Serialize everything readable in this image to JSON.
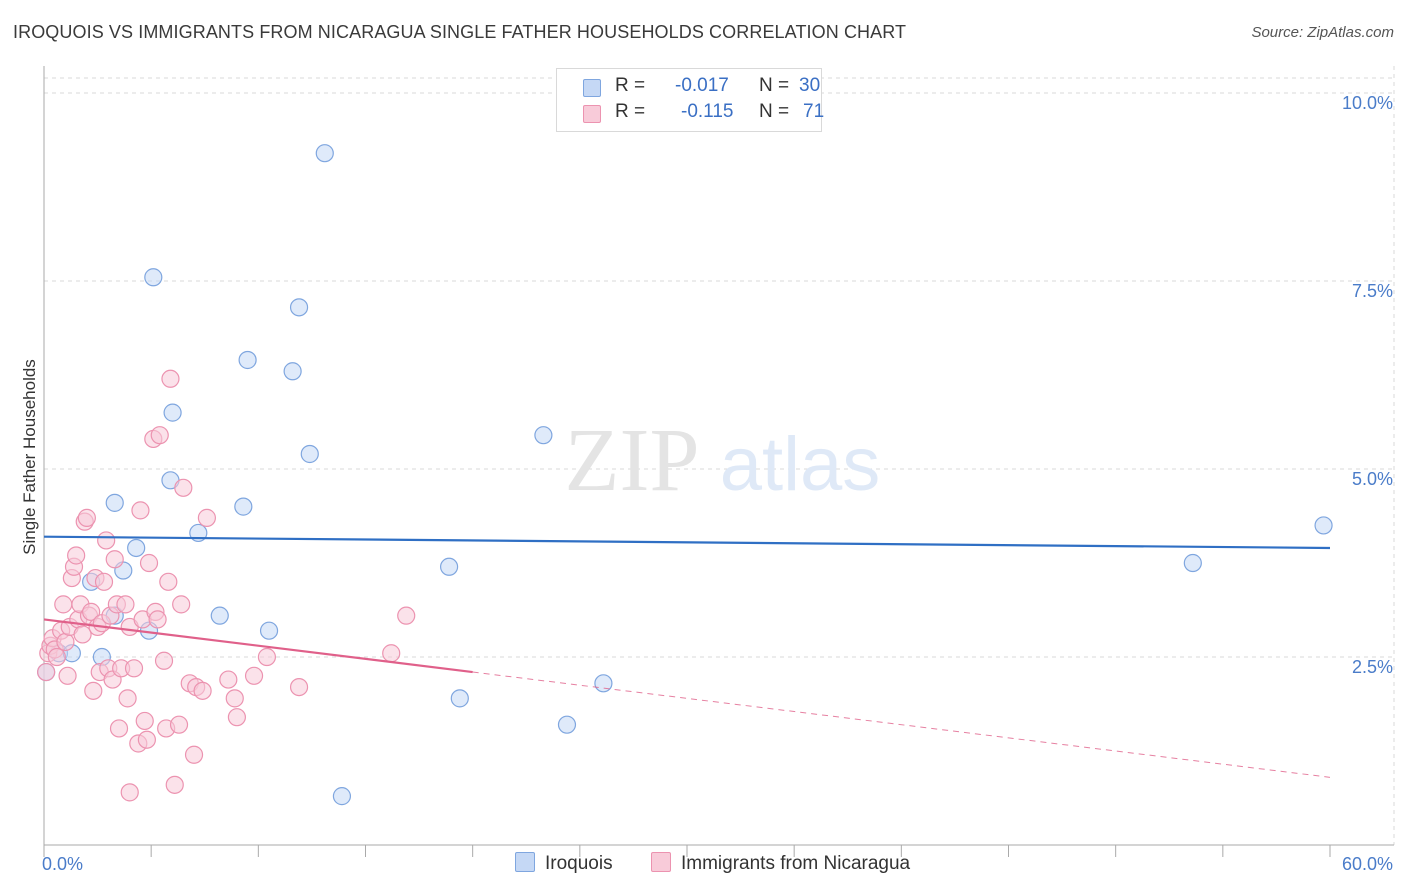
{
  "title": "IROQUOIS VS IMMIGRANTS FROM NICARAGUA SINGLE FATHER HOUSEHOLDS CORRELATION CHART",
  "source": "Source: ZipAtlas.com",
  "watermark": {
    "zip": "ZIP",
    "atlas": "atlas"
  },
  "legend": {
    "r_label": "R =",
    "n_label": "N =",
    "rows": [
      {
        "name": "Iroquois",
        "r": "-0.017",
        "n": "30"
      },
      {
        "name": "Immigrants from Nicaragua",
        "r": "-0.115",
        "n": "71"
      }
    ]
  },
  "colors": {
    "series1_fill": "#c5d8f5",
    "series1_stroke": "#7fa6df",
    "series1_line": "#2f6fc4",
    "series2_fill": "#f8cbd9",
    "series2_stroke": "#ec93b0",
    "series2_line": "#e0608a",
    "grid": "#d8d8d8",
    "tick_text": "#4a7cc9"
  },
  "chart_data": {
    "type": "scatter",
    "title": "IROQUOIS VS IMMIGRANTS FROM NICARAGUA SINGLE FATHER HOUSEHOLDS CORRELATION CHART",
    "xlabel": "",
    "ylabel": "Single Father Households",
    "xlim": [
      0,
      60
    ],
    "ylim": [
      0,
      10.2
    ],
    "x_tick_labels": [
      "0.0%",
      "60.0%"
    ],
    "y_ticks": [
      2.5,
      5.0,
      7.5,
      10.0
    ],
    "y_tick_labels": [
      "2.5%",
      "5.0%",
      "7.5%",
      "10.0%"
    ],
    "grid": true,
    "series": [
      {
        "name": "Iroquois",
        "r": -0.017,
        "n": 30,
        "trend": {
          "x": [
            0,
            60
          ],
          "y": [
            4.1,
            3.95
          ],
          "dashed_after": null
        },
        "points": [
          {
            "x": 0.1,
            "y": 2.3
          },
          {
            "x": 0.7,
            "y": 2.55
          },
          {
            "x": 1.3,
            "y": 2.55
          },
          {
            "x": 3.3,
            "y": 3.05
          },
          {
            "x": 2.2,
            "y": 3.5
          },
          {
            "x": 2.7,
            "y": 2.5
          },
          {
            "x": 3.7,
            "y": 3.65
          },
          {
            "x": 3.3,
            "y": 4.55
          },
          {
            "x": 4.3,
            "y": 3.95
          },
          {
            "x": 4.9,
            "y": 2.85
          },
          {
            "x": 5.1,
            "y": 7.55
          },
          {
            "x": 5.9,
            "y": 4.85
          },
          {
            "x": 6.0,
            "y": 5.75
          },
          {
            "x": 7.2,
            "y": 4.15
          },
          {
            "x": 8.2,
            "y": 3.05
          },
          {
            "x": 9.5,
            "y": 6.45
          },
          {
            "x": 9.3,
            "y": 4.5
          },
          {
            "x": 10.5,
            "y": 2.85
          },
          {
            "x": 11.6,
            "y": 6.3
          },
          {
            "x": 11.9,
            "y": 7.15
          },
          {
            "x": 12.4,
            "y": 5.2
          },
          {
            "x": 13.1,
            "y": 9.2
          },
          {
            "x": 13.9,
            "y": 0.65
          },
          {
            "x": 18.9,
            "y": 3.7
          },
          {
            "x": 19.4,
            "y": 1.95
          },
          {
            "x": 23.3,
            "y": 5.45
          },
          {
            "x": 24.4,
            "y": 1.6
          },
          {
            "x": 26.1,
            "y": 2.15
          },
          {
            "x": 53.6,
            "y": 3.75
          },
          {
            "x": 59.7,
            "y": 4.25
          }
        ]
      },
      {
        "name": "Immigrants from Nicaragua",
        "r": -0.115,
        "n": 71,
        "trend": {
          "x": [
            0,
            60
          ],
          "y": [
            3.0,
            0.9
          ],
          "dashed_after": 20
        },
        "points": [
          {
            "x": 0.1,
            "y": 2.3
          },
          {
            "x": 0.2,
            "y": 2.55
          },
          {
            "x": 0.3,
            "y": 2.65
          },
          {
            "x": 0.4,
            "y": 2.75
          },
          {
            "x": 0.5,
            "y": 2.6
          },
          {
            "x": 0.6,
            "y": 2.5
          },
          {
            "x": 0.8,
            "y": 2.85
          },
          {
            "x": 0.9,
            "y": 3.2
          },
          {
            "x": 1.0,
            "y": 2.7
          },
          {
            "x": 1.1,
            "y": 2.25
          },
          {
            "x": 1.2,
            "y": 2.9
          },
          {
            "x": 1.3,
            "y": 3.55
          },
          {
            "x": 1.4,
            "y": 3.7
          },
          {
            "x": 1.5,
            "y": 3.85
          },
          {
            "x": 1.6,
            "y": 3.0
          },
          {
            "x": 1.7,
            "y": 3.2
          },
          {
            "x": 1.8,
            "y": 2.8
          },
          {
            "x": 1.9,
            "y": 4.3
          },
          {
            "x": 2.0,
            "y": 4.35
          },
          {
            "x": 2.1,
            "y": 3.05
          },
          {
            "x": 2.2,
            "y": 3.1
          },
          {
            "x": 2.3,
            "y": 2.05
          },
          {
            "x": 2.4,
            "y": 3.55
          },
          {
            "x": 2.5,
            "y": 2.9
          },
          {
            "x": 2.6,
            "y": 2.3
          },
          {
            "x": 2.7,
            "y": 2.95
          },
          {
            "x": 2.8,
            "y": 3.5
          },
          {
            "x": 2.9,
            "y": 4.05
          },
          {
            "x": 3.0,
            "y": 2.35
          },
          {
            "x": 3.1,
            "y": 3.05
          },
          {
            "x": 3.2,
            "y": 2.2
          },
          {
            "x": 3.3,
            "y": 3.8
          },
          {
            "x": 3.4,
            "y": 3.2
          },
          {
            "x": 3.5,
            "y": 1.55
          },
          {
            "x": 3.6,
            "y": 2.35
          },
          {
            "x": 3.8,
            "y": 3.2
          },
          {
            "x": 3.9,
            "y": 1.95
          },
          {
            "x": 4.0,
            "y": 2.9
          },
          {
            "x": 4.0,
            "y": 0.7
          },
          {
            "x": 4.2,
            "y": 2.35
          },
          {
            "x": 4.4,
            "y": 1.35
          },
          {
            "x": 4.5,
            "y": 4.45
          },
          {
            "x": 4.6,
            "y": 3.0
          },
          {
            "x": 4.7,
            "y": 1.65
          },
          {
            "x": 4.8,
            "y": 1.4
          },
          {
            "x": 4.9,
            "y": 3.75
          },
          {
            "x": 5.1,
            "y": 5.4
          },
          {
            "x": 5.2,
            "y": 3.1
          },
          {
            "x": 5.3,
            "y": 3.0
          },
          {
            "x": 5.4,
            "y": 5.45
          },
          {
            "x": 5.6,
            "y": 2.45
          },
          {
            "x": 5.7,
            "y": 1.55
          },
          {
            "x": 5.8,
            "y": 3.5
          },
          {
            "x": 5.9,
            "y": 6.2
          },
          {
            "x": 6.1,
            "y": 0.8
          },
          {
            "x": 6.3,
            "y": 1.6
          },
          {
            "x": 6.4,
            "y": 3.2
          },
          {
            "x": 6.5,
            "y": 4.75
          },
          {
            "x": 6.8,
            "y": 2.15
          },
          {
            "x": 7.0,
            "y": 1.2
          },
          {
            "x": 7.1,
            "y": 2.1
          },
          {
            "x": 7.4,
            "y": 2.05
          },
          {
            "x": 7.6,
            "y": 4.35
          },
          {
            "x": 8.6,
            "y": 2.2
          },
          {
            "x": 8.9,
            "y": 1.95
          },
          {
            "x": 9.0,
            "y": 1.7
          },
          {
            "x": 9.8,
            "y": 2.25
          },
          {
            "x": 10.4,
            "y": 2.5
          },
          {
            "x": 11.9,
            "y": 2.1
          },
          {
            "x": 16.2,
            "y": 2.55
          },
          {
            "x": 16.9,
            "y": 3.05
          }
        ]
      }
    ]
  }
}
